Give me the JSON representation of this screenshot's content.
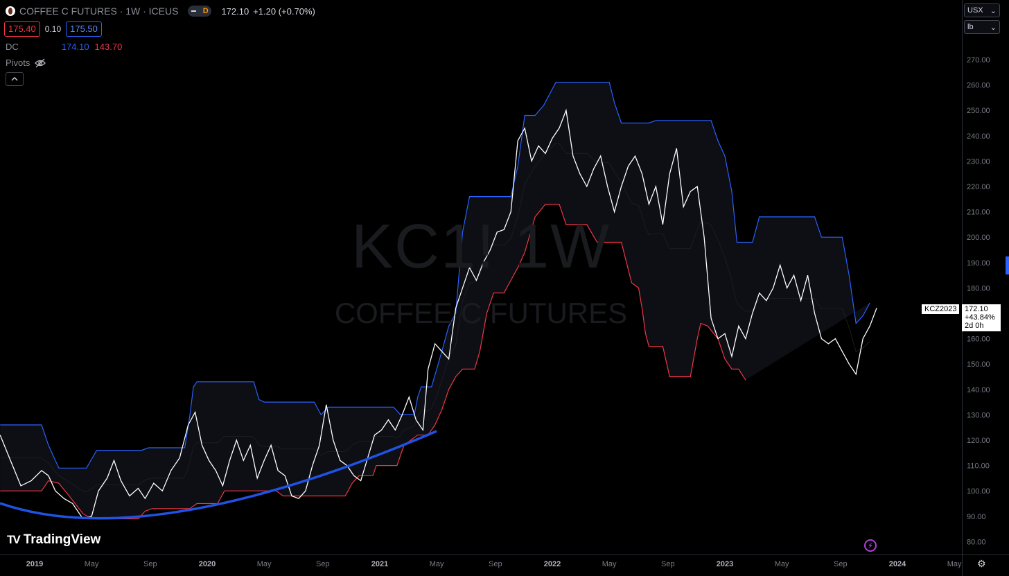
{
  "header": {
    "symbol_title": "COFFEE C FUTURES · 1W · ICEUS",
    "toggle_label": "D",
    "last_price": "172.10",
    "change": "+1.20 (+0.70%)"
  },
  "quote": {
    "bid": "175.40",
    "spread": "0.10",
    "ask": "175.50"
  },
  "indicators": {
    "dc": {
      "name": "DC",
      "upper": "174.10",
      "lower": "143.70"
    },
    "pivots": {
      "name": "Pivots"
    }
  },
  "watermark": {
    "line1": "KC1! 1W",
    "line2": "COFFEE C FUTURES"
  },
  "axis_controls": {
    "currency": "USX",
    "unit": "lb"
  },
  "brand": {
    "name": "TradingView"
  },
  "price_tag": {
    "ticker": "KCZ2023",
    "price": "172.10",
    "change_pct": "+43.84%",
    "countdown": "2d 0h"
  },
  "colors": {
    "upper_band": "#2962ff",
    "lower_band": "#f23645",
    "price_line": "#ffffff",
    "curve": "#1e53e5",
    "fill": "#0d0f14"
  },
  "chart_data": {
    "type": "line",
    "ylim": [
      77,
      282
    ],
    "y_ticks": [
      80,
      90,
      100,
      110,
      120,
      130,
      140,
      150,
      160,
      170,
      180,
      190,
      200,
      210,
      220,
      230,
      240,
      250,
      260,
      270
    ],
    "x_ticks": [
      {
        "label": "2019",
        "t": 2019.0
      },
      {
        "label": "May",
        "t": 2019.33
      },
      {
        "label": "Sep",
        "t": 2019.67
      },
      {
        "label": "2020",
        "t": 2020.0
      },
      {
        "label": "May",
        "t": 2020.33
      },
      {
        "label": "Sep",
        "t": 2020.67
      },
      {
        "label": "2021",
        "t": 2021.0
      },
      {
        "label": "May",
        "t": 2021.33
      },
      {
        "label": "Sep",
        "t": 2021.67
      },
      {
        "label": "2022",
        "t": 2022.0
      },
      {
        "label": "May",
        "t": 2022.33
      },
      {
        "label": "Sep",
        "t": 2022.67
      },
      {
        "label": "2023",
        "t": 2023.0
      },
      {
        "label": "May",
        "t": 2023.33
      },
      {
        "label": "Sep",
        "t": 2023.67
      },
      {
        "label": "2024",
        "t": 2024.0
      },
      {
        "label": "May",
        "t": 2024.33
      }
    ],
    "series": [
      {
        "name": "Close",
        "points": [
          [
            2018.8,
            122
          ],
          [
            2018.86,
            112
          ],
          [
            2018.92,
            102
          ],
          [
            2018.98,
            104
          ],
          [
            2019.04,
            108
          ],
          [
            2019.08,
            106
          ],
          [
            2019.12,
            100
          ],
          [
            2019.17,
            97
          ],
          [
            2019.22,
            95
          ],
          [
            2019.28,
            89
          ],
          [
            2019.33,
            90
          ],
          [
            2019.37,
            100
          ],
          [
            2019.42,
            105
          ],
          [
            2019.46,
            112
          ],
          [
            2019.5,
            104
          ],
          [
            2019.55,
            98
          ],
          [
            2019.6,
            101
          ],
          [
            2019.64,
            97
          ],
          [
            2019.69,
            103
          ],
          [
            2019.74,
            100
          ],
          [
            2019.79,
            108
          ],
          [
            2019.84,
            113
          ],
          [
            2019.89,
            126
          ],
          [
            2019.93,
            131
          ],
          [
            2019.97,
            118
          ],
          [
            2020.01,
            112
          ],
          [
            2020.05,
            108
          ],
          [
            2020.09,
            102
          ],
          [
            2020.13,
            112
          ],
          [
            2020.17,
            120
          ],
          [
            2020.21,
            112
          ],
          [
            2020.25,
            118
          ],
          [
            2020.29,
            105
          ],
          [
            2020.33,
            112
          ],
          [
            2020.37,
            118
          ],
          [
            2020.41,
            108
          ],
          [
            2020.45,
            106
          ],
          [
            2020.49,
            98
          ],
          [
            2020.53,
            97
          ],
          [
            2020.57,
            100
          ],
          [
            2020.61,
            110
          ],
          [
            2020.65,
            118
          ],
          [
            2020.69,
            134
          ],
          [
            2020.73,
            120
          ],
          [
            2020.77,
            112
          ],
          [
            2020.81,
            110
          ],
          [
            2020.85,
            106
          ],
          [
            2020.89,
            104
          ],
          [
            2020.93,
            113
          ],
          [
            2020.97,
            122
          ],
          [
            2021.01,
            124
          ],
          [
            2021.05,
            128
          ],
          [
            2021.09,
            124
          ],
          [
            2021.13,
            130
          ],
          [
            2021.17,
            137
          ],
          [
            2021.21,
            128
          ],
          [
            2021.25,
            124
          ],
          [
            2021.28,
            148
          ],
          [
            2021.32,
            158
          ],
          [
            2021.36,
            155
          ],
          [
            2021.4,
            152
          ],
          [
            2021.44,
            172
          ],
          [
            2021.48,
            180
          ],
          [
            2021.52,
            188
          ],
          [
            2021.56,
            183
          ],
          [
            2021.6,
            190
          ],
          [
            2021.64,
            195
          ],
          [
            2021.68,
            202
          ],
          [
            2021.72,
            203
          ],
          [
            2021.76,
            210
          ],
          [
            2021.8,
            238
          ],
          [
            2021.84,
            243
          ],
          [
            2021.88,
            230
          ],
          [
            2021.92,
            236
          ],
          [
            2021.96,
            233
          ],
          [
            2022.0,
            239
          ],
          [
            2022.04,
            243
          ],
          [
            2022.08,
            250
          ],
          [
            2022.12,
            232
          ],
          [
            2022.16,
            225
          ],
          [
            2022.2,
            220
          ],
          [
            2022.24,
            227
          ],
          [
            2022.28,
            232
          ],
          [
            2022.32,
            220
          ],
          [
            2022.36,
            210
          ],
          [
            2022.4,
            220
          ],
          [
            2022.44,
            228
          ],
          [
            2022.48,
            232
          ],
          [
            2022.52,
            225
          ],
          [
            2022.56,
            213
          ],
          [
            2022.6,
            220
          ],
          [
            2022.64,
            205
          ],
          [
            2022.68,
            225
          ],
          [
            2022.72,
            235
          ],
          [
            2022.76,
            212
          ],
          [
            2022.8,
            218
          ],
          [
            2022.84,
            220
          ],
          [
            2022.88,
            200
          ],
          [
            2022.92,
            168
          ],
          [
            2022.96,
            160
          ],
          [
            2023.0,
            162
          ],
          [
            2023.04,
            153
          ],
          [
            2023.08,
            165
          ],
          [
            2023.12,
            160
          ],
          [
            2023.16,
            170
          ],
          [
            2023.2,
            178
          ],
          [
            2023.24,
            175
          ],
          [
            2023.28,
            180
          ],
          [
            2023.32,
            189
          ],
          [
            2023.36,
            180
          ],
          [
            2023.4,
            185
          ],
          [
            2023.44,
            175
          ],
          [
            2023.48,
            185
          ],
          [
            2023.52,
            170
          ],
          [
            2023.56,
            160
          ],
          [
            2023.6,
            158
          ],
          [
            2023.64,
            160
          ],
          [
            2023.68,
            155
          ],
          [
            2023.72,
            150
          ],
          [
            2023.76,
            146
          ],
          [
            2023.8,
            160
          ],
          [
            2023.84,
            165
          ],
          [
            2023.88,
            172.1
          ]
        ]
      },
      {
        "name": "DC upper",
        "points": [
          [
            2018.8,
            126
          ],
          [
            2019.04,
            126
          ],
          [
            2019.08,
            118
          ],
          [
            2019.14,
            109
          ],
          [
            2019.3,
            109
          ],
          [
            2019.36,
            116
          ],
          [
            2019.62,
            116
          ],
          [
            2019.66,
            117
          ],
          [
            2019.87,
            117
          ],
          [
            2019.9,
            130
          ],
          [
            2019.92,
            141
          ],
          [
            2019.94,
            143
          ],
          [
            2020.27,
            143
          ],
          [
            2020.3,
            136
          ],
          [
            2020.33,
            135
          ],
          [
            2020.62,
            135
          ],
          [
            2020.66,
            130
          ],
          [
            2020.7,
            133
          ],
          [
            2020.93,
            133
          ],
          [
            2021.0,
            133
          ],
          [
            2021.08,
            133
          ],
          [
            2021.12,
            130
          ],
          [
            2021.2,
            130
          ],
          [
            2021.22,
            137
          ],
          [
            2021.24,
            141
          ],
          [
            2021.3,
            141
          ],
          [
            2021.33,
            148
          ],
          [
            2021.36,
            155
          ],
          [
            2021.4,
            165
          ],
          [
            2021.44,
            170
          ],
          [
            2021.48,
            202
          ],
          [
            2021.52,
            216
          ],
          [
            2021.76,
            216
          ],
          [
            2021.8,
            228
          ],
          [
            2021.84,
            248
          ],
          [
            2021.9,
            248
          ],
          [
            2021.95,
            252
          ],
          [
            2022.02,
            261
          ],
          [
            2022.33,
            261
          ],
          [
            2022.36,
            253
          ],
          [
            2022.4,
            245
          ],
          [
            2022.56,
            245
          ],
          [
            2022.6,
            246
          ],
          [
            2022.92,
            246
          ],
          [
            2022.96,
            238
          ],
          [
            2023.0,
            232
          ],
          [
            2023.04,
            218
          ],
          [
            2023.07,
            198
          ],
          [
            2023.16,
            198
          ],
          [
            2023.2,
            208
          ],
          [
            2023.52,
            208
          ],
          [
            2023.56,
            200
          ],
          [
            2023.68,
            200
          ],
          [
            2023.72,
            185
          ],
          [
            2023.76,
            166
          ],
          [
            2023.8,
            169
          ],
          [
            2023.84,
            174.1
          ]
        ]
      },
      {
        "name": "DC lower",
        "points": [
          [
            2018.8,
            100
          ],
          [
            2019.04,
            100
          ],
          [
            2019.08,
            104
          ],
          [
            2019.14,
            103
          ],
          [
            2019.2,
            98
          ],
          [
            2019.28,
            91
          ],
          [
            2019.33,
            89
          ],
          [
            2019.5,
            89
          ],
          [
            2019.6,
            89
          ],
          [
            2019.64,
            92
          ],
          [
            2019.68,
            93
          ],
          [
            2019.9,
            93
          ],
          [
            2019.94,
            95
          ],
          [
            2020.06,
            95
          ],
          [
            2020.1,
            100
          ],
          [
            2020.4,
            100
          ],
          [
            2020.44,
            98
          ],
          [
            2020.5,
            98
          ],
          [
            2020.8,
            98
          ],
          [
            2020.84,
            103
          ],
          [
            2020.88,
            106
          ],
          [
            2020.96,
            106
          ],
          [
            2020.98,
            110
          ],
          [
            2021.1,
            110
          ],
          [
            2021.14,
            118
          ],
          [
            2021.18,
            120
          ],
          [
            2021.22,
            122
          ],
          [
            2021.28,
            122
          ],
          [
            2021.32,
            126
          ],
          [
            2021.36,
            132
          ],
          [
            2021.4,
            140
          ],
          [
            2021.44,
            145
          ],
          [
            2021.48,
            148
          ],
          [
            2021.55,
            148
          ],
          [
            2021.58,
            155
          ],
          [
            2021.62,
            170
          ],
          [
            2021.66,
            178
          ],
          [
            2021.72,
            178
          ],
          [
            2021.76,
            183
          ],
          [
            2021.8,
            188
          ],
          [
            2021.84,
            194
          ],
          [
            2021.9,
            208
          ],
          [
            2021.96,
            213
          ],
          [
            2022.04,
            213
          ],
          [
            2022.08,
            205
          ],
          [
            2022.2,
            205
          ],
          [
            2022.26,
            198
          ],
          [
            2022.4,
            198
          ],
          [
            2022.46,
            182
          ],
          [
            2022.5,
            180
          ],
          [
            2022.52,
            172
          ],
          [
            2022.54,
            162
          ],
          [
            2022.56,
            157
          ],
          [
            2022.64,
            157
          ],
          [
            2022.68,
            145
          ],
          [
            2022.8,
            145
          ],
          [
            2022.84,
            160
          ],
          [
            2022.86,
            166
          ],
          [
            2022.9,
            165
          ],
          [
            2022.96,
            160
          ],
          [
            2023.0,
            152
          ],
          [
            2023.04,
            148
          ],
          [
            2023.08,
            148
          ],
          [
            2023.12,
            143.7
          ]
        ]
      }
    ]
  }
}
